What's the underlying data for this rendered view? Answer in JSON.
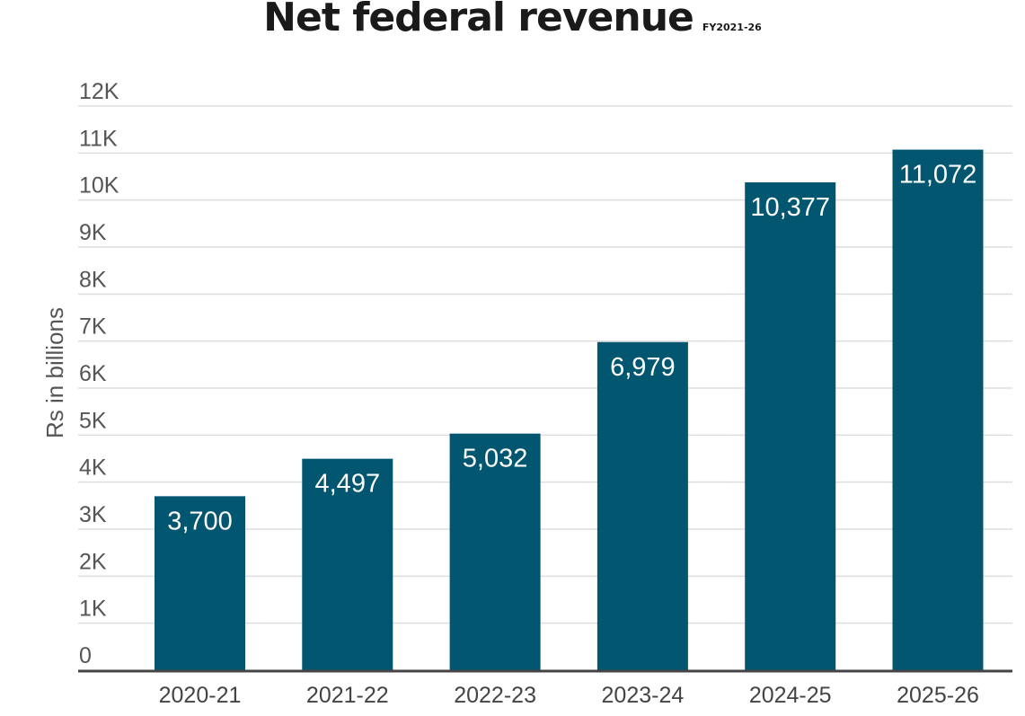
{
  "chart_data": {
    "type": "bar",
    "title": "Net federal revenue",
    "subtitle": "FY2021-26",
    "xlabel": "",
    "ylabel": "Rs in billions",
    "categories": [
      "2020-21",
      "2021-22",
      "2022-23",
      "2023-24",
      "2024-25",
      "2025-26"
    ],
    "values": [
      3700,
      4497,
      5032,
      6979,
      10377,
      11072
    ],
    "data_labels": [
      "3,700",
      "4,497",
      "5,032",
      "6,979",
      "10,377",
      "11,072"
    ],
    "ylim": [
      0,
      12000
    ],
    "yticks": [
      0,
      1000,
      2000,
      3000,
      4000,
      5000,
      6000,
      7000,
      8000,
      9000,
      10000,
      11000,
      12000
    ],
    "ytick_labels": [
      "0",
      "1K",
      "2K",
      "3K",
      "4K",
      "5K",
      "6K",
      "7K",
      "8K",
      "9K",
      "10K",
      "11K",
      "12K"
    ],
    "grid": true,
    "bar_color": "#02566f"
  }
}
